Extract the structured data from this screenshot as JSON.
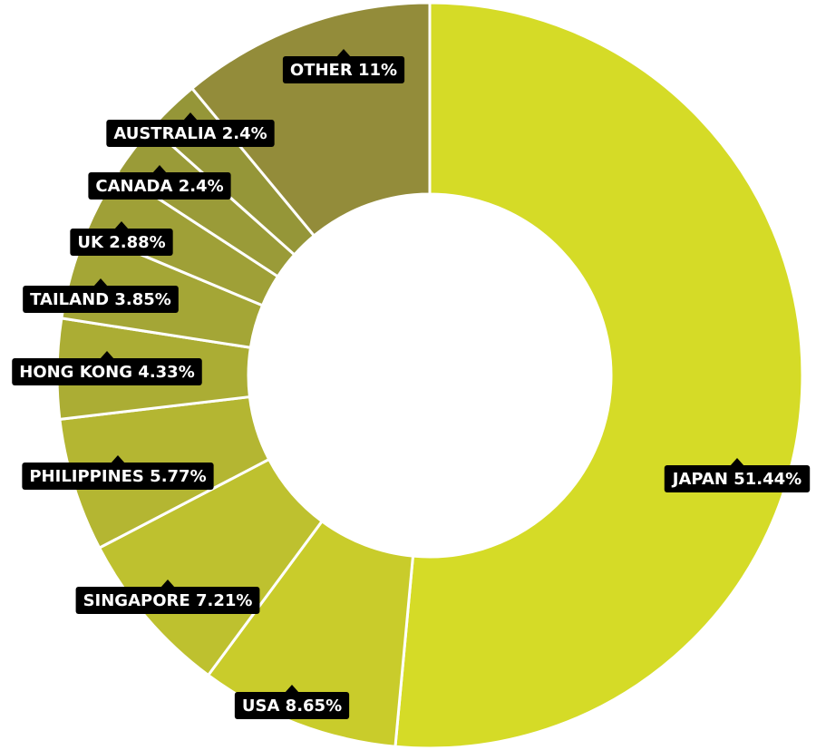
{
  "chart_data": {
    "type": "donut",
    "categories": [
      "JAPAN",
      "USA",
      "SINGAPORE",
      "PHILIPPINES",
      "HONG KONG",
      "TAILAND",
      "UK",
      "CANADA",
      "AUSTRALIA",
      "OTHER"
    ],
    "values": [
      51.44,
      8.65,
      7.21,
      5.77,
      4.33,
      3.85,
      2.88,
      2.4,
      2.4,
      11
    ],
    "value_labels": [
      "51.44%",
      "8.65%",
      "7.21%",
      "5.77%",
      "4.33%",
      "3.85%",
      "2.88%",
      "2.4%",
      "2.4%",
      "11%"
    ],
    "colors": [
      "#d5db27",
      "#c9cc2b",
      "#bec12f",
      "#b4b632",
      "#abad34",
      "#a4a636",
      "#9fa037",
      "#9a9b38",
      "#959638",
      "#938c3a"
    ]
  }
}
